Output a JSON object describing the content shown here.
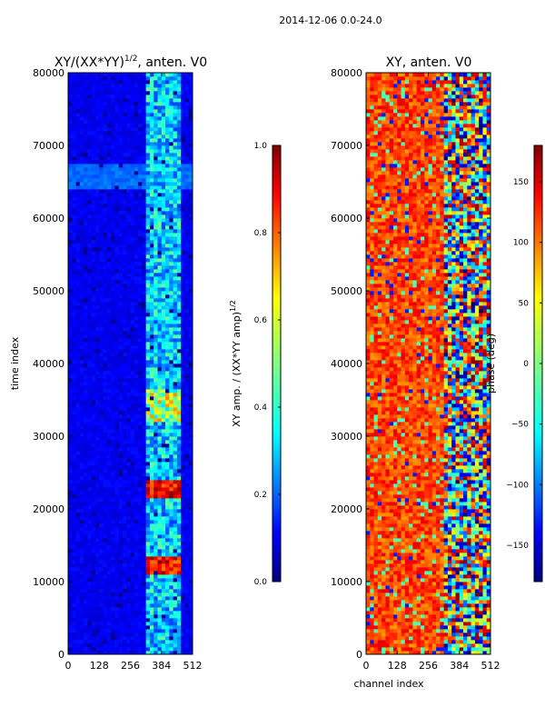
{
  "figure_title": "2014-12-06 0.0-24.0",
  "colors": {
    "jet": [
      "#00007f",
      "#0000ff",
      "#007fff",
      "#00ffff",
      "#7fff7f",
      "#ffff00",
      "#ff7f00",
      "#ff0000",
      "#7f0000"
    ]
  },
  "chart_data": [
    {
      "type": "heatmap",
      "title_main": "XY/(XX*YY)",
      "title_sup": "1/2",
      "title_tail": ", anten. V0",
      "xlabel": "",
      "ylabel": "time index",
      "xlim": [
        0,
        512
      ],
      "ylim": [
        0,
        80000
      ],
      "xticks": [
        0,
        128,
        256,
        384,
        512
      ],
      "yticks": [
        0,
        10000,
        20000,
        30000,
        40000,
        50000,
        60000,
        70000,
        80000
      ],
      "colorbar": {
        "label_main": "XY amp. / (XX*YY amp)",
        "label_sup": "1/2",
        "range": [
          0.0,
          1.0
        ],
        "ticks": [
          "0.0",
          "0.2",
          "0.4",
          "0.6",
          "0.8",
          "1.0"
        ],
        "tick_values": [
          0.0,
          0.2,
          0.4,
          0.6,
          0.8,
          1.0
        ]
      }
    },
    {
      "type": "heatmap",
      "title_main": "XY, anten. V0",
      "xlabel": "channel index",
      "ylabel": "",
      "xlim": [
        0,
        512
      ],
      "ylim": [
        0,
        80000
      ],
      "xticks": [
        0,
        128,
        256,
        384,
        512
      ],
      "yticks": [
        0,
        10000,
        20000,
        30000,
        40000,
        50000,
        60000,
        70000,
        80000
      ],
      "colorbar": {
        "label_main": "phase (deg)",
        "range": [
          -180,
          180
        ],
        "ticks": [
          "−150",
          "−100",
          "−50",
          "0",
          "50",
          "100",
          "150"
        ],
        "tick_values": [
          -150,
          -100,
          -50,
          0,
          50,
          100,
          150
        ]
      }
    }
  ]
}
